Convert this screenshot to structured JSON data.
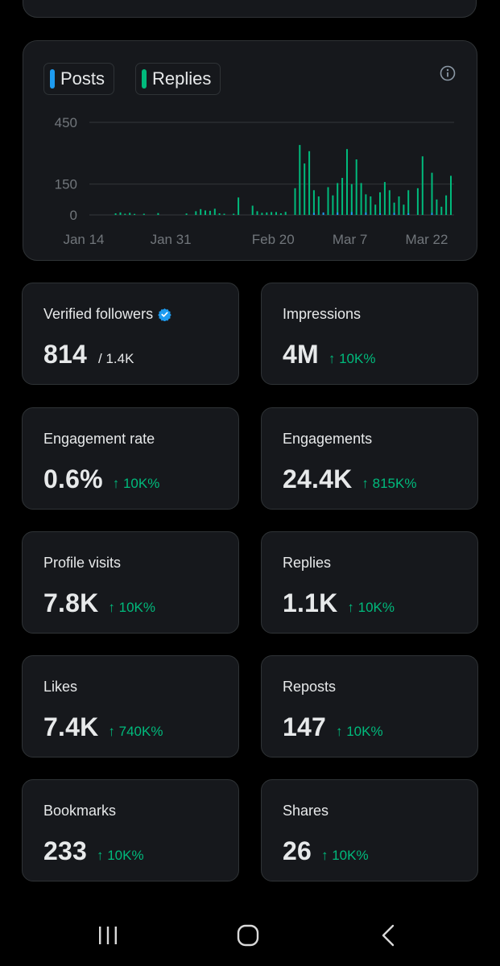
{
  "chart": {
    "legend": [
      {
        "label": "Posts",
        "color": "#1d9bf0"
      },
      {
        "label": "Replies",
        "color": "#00ba7c"
      }
    ],
    "info_icon": "info-icon"
  },
  "chart_data": {
    "type": "bar",
    "title": "",
    "xlabel": "",
    "ylabel": "",
    "y_ticks": [
      {
        "value": 450,
        "label": "450"
      },
      {
        "value": 150,
        "label": "150"
      },
      {
        "value": 0,
        "label": "0"
      }
    ],
    "ylim": [
      0,
      450
    ],
    "x_ticks": [
      "Jan 14",
      "Jan 31",
      "Feb 20",
      "Mar 7",
      "Mar 22"
    ],
    "x_tick_days": [
      0,
      17,
      37,
      52,
      67
    ],
    "day_range": [
      0,
      72
    ],
    "series": [
      {
        "name": "Replies",
        "color": "#00ba7c",
        "points": [
          [
            3,
            8
          ],
          [
            4,
            12
          ],
          [
            5,
            6
          ],
          [
            6,
            10
          ],
          [
            7,
            5
          ],
          [
            9,
            6
          ],
          [
            12,
            9
          ],
          [
            18,
            7
          ],
          [
            20,
            18
          ],
          [
            21,
            28
          ],
          [
            22,
            22
          ],
          [
            23,
            20
          ],
          [
            24,
            30
          ],
          [
            25,
            8
          ],
          [
            26,
            6
          ],
          [
            28,
            6
          ],
          [
            29,
            85
          ],
          [
            32,
            45
          ],
          [
            33,
            18
          ],
          [
            34,
            10
          ],
          [
            35,
            12
          ],
          [
            36,
            14
          ],
          [
            37,
            14
          ],
          [
            38,
            8
          ],
          [
            39,
            15
          ],
          [
            41,
            130
          ],
          [
            42,
            340
          ],
          [
            43,
            250
          ],
          [
            44,
            310
          ],
          [
            45,
            120
          ],
          [
            46,
            90
          ],
          [
            48,
            135
          ],
          [
            49,
            95
          ],
          [
            50,
            155
          ],
          [
            51,
            180
          ],
          [
            52,
            320
          ],
          [
            53,
            150
          ],
          [
            54,
            270
          ],
          [
            55,
            155
          ],
          [
            56,
            100
          ],
          [
            57,
            90
          ],
          [
            58,
            50
          ],
          [
            59,
            110
          ],
          [
            60,
            160
          ],
          [
            61,
            120
          ],
          [
            62,
            60
          ],
          [
            63,
            90
          ],
          [
            64,
            50
          ],
          [
            65,
            120
          ],
          [
            67,
            130
          ],
          [
            68,
            285
          ],
          [
            70,
            205
          ],
          [
            71,
            75
          ],
          [
            72,
            40
          ],
          [
            73,
            95
          ],
          [
            74,
            190
          ]
        ]
      },
      {
        "name": "Posts",
        "color": "#1d9bf0",
        "points": [
          [
            45,
            10
          ],
          [
            47,
            12
          ],
          [
            50,
            12
          ],
          [
            53,
            14
          ],
          [
            56,
            12
          ],
          [
            59,
            8
          ],
          [
            62,
            10
          ],
          [
            65,
            8
          ],
          [
            70,
            10
          ]
        ]
      }
    ]
  },
  "stats": [
    {
      "label": "Verified followers",
      "value": "814",
      "sub": "/ 1.4K",
      "change": "",
      "verified": true
    },
    {
      "label": "Impressions",
      "value": "4M",
      "sub": "",
      "change": "↑ 10K%"
    },
    {
      "label": "Engagement rate",
      "value": "0.6%",
      "sub": "",
      "change": "↑ 10K%"
    },
    {
      "label": "Engagements",
      "value": "24.4K",
      "sub": "",
      "change": "↑ 815K%"
    },
    {
      "label": "Profile visits",
      "value": "7.8K",
      "sub": "",
      "change": "↑ 10K%"
    },
    {
      "label": "Replies",
      "value": "1.1K",
      "sub": "",
      "change": "↑ 10K%"
    },
    {
      "label": "Likes",
      "value": "7.4K",
      "sub": "",
      "change": "↑ 740K%"
    },
    {
      "label": "Reposts",
      "value": "147",
      "sub": "",
      "change": "↑ 10K%"
    },
    {
      "label": "Bookmarks",
      "value": "233",
      "sub": "",
      "change": "↑ 10K%"
    },
    {
      "label": "Shares",
      "value": "26",
      "sub": "",
      "change": "↑ 10K%"
    }
  ],
  "nav": {
    "recents": "recents-icon",
    "home": "home-icon",
    "back": "back-icon"
  },
  "colors": {
    "background": "#000000",
    "card": "#16181c",
    "border": "#2f3336",
    "text": "#e7e9ea",
    "muted": "#71767b",
    "positive": "#00ba7c",
    "accent": "#1d9bf0"
  }
}
